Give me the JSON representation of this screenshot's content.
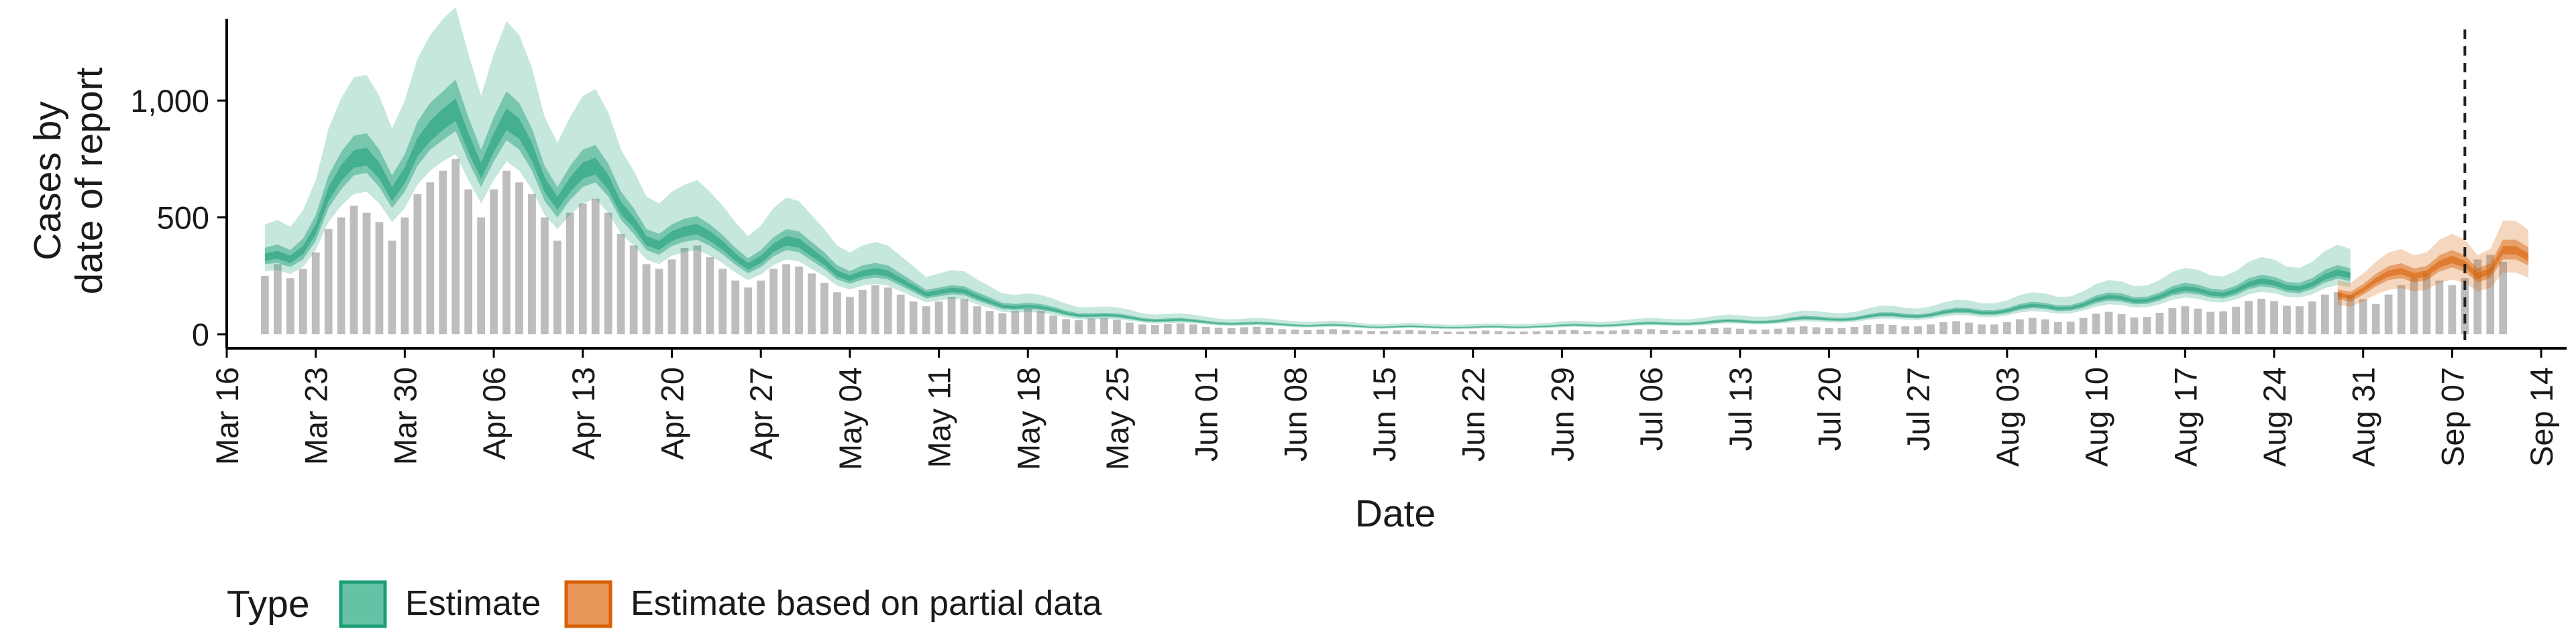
{
  "chart_data": {
    "type": "bar",
    "xlabel": "Date",
    "ylabel_lines": [
      "Cases by",
      "date of report"
    ],
    "y_ticks": [
      0,
      500,
      1000
    ],
    "y_tick_labels": [
      "0",
      "500",
      "1,000"
    ],
    "ylim": [
      -60,
      1350
    ],
    "xlim": [
      "2020-03-16",
      "2020-09-16"
    ],
    "x_ticks": [
      "2020-03-16",
      "2020-03-23",
      "2020-03-30",
      "2020-04-06",
      "2020-04-13",
      "2020-04-20",
      "2020-04-27",
      "2020-05-04",
      "2020-05-11",
      "2020-05-18",
      "2020-05-25",
      "2020-06-01",
      "2020-06-08",
      "2020-06-15",
      "2020-06-22",
      "2020-06-29",
      "2020-07-06",
      "2020-07-13",
      "2020-07-20",
      "2020-07-27",
      "2020-08-03",
      "2020-08-10",
      "2020-08-17",
      "2020-08-24",
      "2020-08-31",
      "2020-09-07",
      "2020-09-14"
    ],
    "x_tick_labels": [
      "Mar 16",
      "Mar 23",
      "Mar 30",
      "Apr 06",
      "Apr 13",
      "Apr 20",
      "Apr 27",
      "May 04",
      "May 11",
      "May 18",
      "May 25",
      "Jun 01",
      "Jun 08",
      "Jun 15",
      "Jun 22",
      "Jun 29",
      "Jul 06",
      "Jul 13",
      "Jul 20",
      "Jul 27",
      "Aug 03",
      "Aug 10",
      "Aug 17",
      "Aug 24",
      "Aug 31",
      "Sep 07",
      "Sep 14"
    ],
    "bar_color": "#bdbdbd",
    "observed_start": "2020-03-19",
    "observed_daily_cases": [
      250,
      300,
      240,
      280,
      350,
      450,
      500,
      550,
      520,
      480,
      400,
      500,
      600,
      650,
      700,
      750,
      620,
      500,
      620,
      700,
      650,
      600,
      500,
      400,
      520,
      560,
      580,
      520,
      430,
      380,
      300,
      280,
      320,
      370,
      380,
      330,
      280,
      230,
      200,
      230,
      280,
      300,
      290,
      260,
      220,
      180,
      160,
      190,
      210,
      200,
      170,
      140,
      120,
      140,
      160,
      150,
      120,
      100,
      90,
      100,
      110,
      100,
      80,
      65,
      60,
      68,
      70,
      62,
      50,
      42,
      40,
      44,
      46,
      42,
      32,
      28,
      26,
      30,
      32,
      28,
      22,
      20,
      18,
      20,
      22,
      18,
      16,
      14,
      14,
      16,
      18,
      16,
      14,
      12,
      12,
      14,
      16,
      14,
      12,
      12,
      13,
      16,
      18,
      18,
      14,
      14,
      16,
      20,
      22,
      22,
      18,
      16,
      17,
      22,
      26,
      28,
      24,
      20,
      20,
      24,
      30,
      34,
      30,
      26,
      26,
      32,
      40,
      44,
      40,
      34,
      34,
      42,
      52,
      56,
      50,
      42,
      42,
      52,
      64,
      70,
      64,
      52,
      54,
      70,
      88,
      96,
      86,
      72,
      74,
      92,
      112,
      120,
      110,
      96,
      98,
      118,
      142,
      152,
      142,
      122,
      120,
      140,
      170,
      180,
      168,
      150,
      130,
      170,
      210,
      240,
      260,
      230,
      210,
      240,
      320,
      340,
      310
    ],
    "separator_date": "2020-09-08",
    "series": [
      {
        "name": "Estimate",
        "color": "#1b9e77",
        "start": "2020-03-19",
        "median": [
          330,
          340,
          320,
          360,
          450,
          600,
          690,
          750,
          760,
          700,
          600,
          680,
          800,
          870,
          920,
          960,
          820,
          700,
          820,
          920,
          880,
          780,
          640,
          560,
          640,
          700,
          720,
          650,
          540,
          480,
          400,
          380,
          420,
          440,
          450,
          420,
          380,
          330,
          290,
          320,
          370,
          400,
          390,
          350,
          310,
          260,
          240,
          260,
          270,
          260,
          230,
          200,
          170,
          180,
          190,
          185,
          160,
          140,
          120,
          115,
          120,
          115,
          105,
          90,
          80,
          80,
          82,
          80,
          72,
          62,
          58,
          60,
          62,
          58,
          52,
          46,
          44,
          46,
          48,
          46,
          42,
          38,
          36,
          38,
          40,
          38,
          34,
          30,
          30,
          32,
          34,
          32,
          30,
          28,
          28,
          30,
          32,
          32,
          30,
          30,
          32,
          34,
          38,
          40,
          38,
          36,
          38,
          42,
          46,
          48,
          46,
          44,
          44,
          48,
          54,
          58,
          56,
          52,
          52,
          56,
          64,
          70,
          68,
          64,
          62,
          66,
          76,
          84,
          84,
          78,
          76,
          82,
          94,
          102,
          100,
          92,
          92,
          100,
          116,
          124,
          120,
          110,
          112,
          126,
          148,
          160,
          156,
          142,
          144,
          160,
          184,
          196,
          190,
          174,
          170,
          186,
          214,
          228,
          220,
          200,
          196,
          214,
          246,
          264,
          252
        ],
        "lo50": [
          300,
          305,
          288,
          320,
          400,
          540,
          620,
          680,
          690,
          630,
          540,
          610,
          720,
          790,
          830,
          870,
          740,
          630,
          740,
          830,
          790,
          700,
          570,
          500,
          575,
          630,
          650,
          590,
          490,
          430,
          360,
          340,
          378,
          396,
          405,
          378,
          342,
          297,
          261,
          288,
          333,
          360,
          351,
          315,
          279,
          234,
          216,
          234,
          243,
          234,
          207,
          180,
          153,
          162,
          171,
          167,
          144,
          126,
          108,
          104,
          108,
          104,
          95,
          81,
          72,
          72,
          74,
          72,
          65,
          56,
          52,
          54,
          56,
          52,
          47,
          41,
          40,
          41,
          43,
          41,
          38,
          34,
          32,
          34,
          36,
          34,
          31,
          27,
          27,
          29,
          31,
          29,
          27,
          25,
          25,
          27,
          29,
          29,
          27,
          27,
          29,
          31,
          34,
          36,
          34,
          32,
          34,
          38,
          41,
          43,
          41,
          40,
          40,
          43,
          49,
          52,
          50,
          47,
          47,
          50,
          58,
          63,
          61,
          58,
          56,
          59,
          68,
          76,
          76,
          70,
          68,
          74,
          85,
          92,
          90,
          83,
          83,
          90,
          104,
          112,
          108,
          99,
          101,
          113,
          133,
          144,
          140,
          128,
          130,
          144,
          166,
          176,
          171,
          157,
          153,
          167,
          193,
          205,
          198,
          180,
          176,
          193,
          221,
          238,
          227
        ],
        "hi50": [
          370,
          385,
          360,
          410,
          510,
          680,
          780,
          850,
          860,
          790,
          680,
          770,
          910,
          990,
          1040,
          1090,
          930,
          790,
          930,
          1040,
          990,
          880,
          720,
          630,
          720,
          790,
          810,
          730,
          610,
          540,
          450,
          430,
          470,
          495,
          505,
          470,
          425,
          370,
          325,
          360,
          415,
          450,
          440,
          395,
          350,
          295,
          270,
          295,
          305,
          295,
          260,
          225,
          190,
          200,
          210,
          205,
          180,
          158,
          135,
          130,
          135,
          130,
          118,
          101,
          90,
          90,
          92,
          90,
          81,
          70,
          65,
          68,
          70,
          65,
          58,
          52,
          50,
          52,
          54,
          52,
          47,
          43,
          40,
          43,
          45,
          43,
          38,
          34,
          34,
          36,
          38,
          36,
          34,
          32,
          32,
          34,
          36,
          36,
          34,
          34,
          36,
          38,
          43,
          45,
          43,
          41,
          43,
          47,
          52,
          54,
          52,
          50,
          50,
          54,
          61,
          65,
          63,
          58,
          58,
          63,
          72,
          79,
          77,
          72,
          70,
          74,
          85,
          94,
          94,
          88,
          85,
          92,
          105,
          114,
          112,
          103,
          103,
          112,
          130,
          139,
          134,
          123,
          125,
          141,
          166,
          179,
          175,
          159,
          161,
          179,
          206,
          220,
          213,
          195,
          190,
          208,
          240,
          255,
          246,
          224,
          220,
          240,
          276,
          296,
          282
        ],
        "lo90": [
          270,
          275,
          258,
          288,
          360,
          480,
          550,
          600,
          610,
          560,
          480,
          540,
          640,
          700,
          740,
          770,
          660,
          560,
          660,
          740,
          700,
          620,
          510,
          450,
          510,
          560,
          580,
          520,
          430,
          380,
          320,
          300,
          336,
          352,
          360,
          336,
          304,
          264,
          232,
          256,
          296,
          320,
          312,
          280,
          248,
          208,
          192,
          208,
          216,
          208,
          184,
          160,
          136,
          144,
          152,
          148,
          128,
          112,
          96,
          92,
          96,
          92,
          84,
          72,
          64,
          64,
          66,
          64,
          58,
          50,
          46,
          48,
          50,
          46,
          42,
          37,
          35,
          37,
          38,
          37,
          34,
          30,
          29,
          30,
          32,
          30,
          27,
          24,
          24,
          26,
          27,
          26,
          24,
          22,
          22,
          24,
          26,
          26,
          24,
          24,
          26,
          27,
          30,
          32,
          30,
          29,
          30,
          34,
          37,
          38,
          37,
          35,
          35,
          38,
          43,
          46,
          45,
          42,
          42,
          45,
          51,
          56,
          54,
          51,
          50,
          53,
          61,
          67,
          67,
          62,
          61,
          66,
          75,
          82,
          80,
          74,
          74,
          80,
          93,
          99,
          96,
          88,
          90,
          101,
          118,
          128,
          125,
          114,
          115,
          128,
          147,
          157,
          152,
          139,
          136,
          149,
          171,
          182,
          176,
          160,
          157,
          171,
          197,
          211,
          202
        ],
        "hi90": [
          470,
          490,
          460,
          530,
          660,
          880,
          1010,
          1100,
          1110,
          1020,
          880,
          1000,
          1180,
          1280,
          1350,
          1400,
          1200,
          1020,
          1200,
          1340,
          1280,
          1140,
          930,
          820,
          930,
          1020,
          1050,
          950,
          790,
          700,
          590,
          560,
          610,
          640,
          660,
          610,
          550,
          480,
          420,
          465,
          540,
          585,
          570,
          510,
          450,
          380,
          350,
          380,
          395,
          380,
          335,
          290,
          245,
          260,
          275,
          270,
          235,
          205,
          175,
          168,
          175,
          168,
          152,
          131,
          116,
          116,
          119,
          116,
          105,
          90,
          84,
          87,
          90,
          84,
          75,
          67,
          64,
          67,
          70,
          67,
          61,
          55,
          52,
          55,
          58,
          55,
          49,
          44,
          44,
          46,
          49,
          46,
          44,
          41,
          41,
          44,
          46,
          46,
          44,
          44,
          46,
          49,
          55,
          58,
          55,
          52,
          55,
          61,
          67,
          70,
          67,
          64,
          64,
          70,
          78,
          84,
          81,
          75,
          75,
          81,
          93,
          102,
          99,
          93,
          90,
          96,
          110,
          122,
          122,
          113,
          110,
          119,
          136,
          148,
          145,
          133,
          133,
          145,
          168,
          180,
          174,
          160,
          162,
          183,
          215,
          232,
          226,
          206,
          209,
          232,
          267,
          284,
          276,
          252,
          247,
          270,
          310,
          331,
          319,
          290,
          284,
          310,
          357,
          383,
          365
        ]
      },
      {
        "name": "Estimate based on partial data",
        "color": "#d95f02",
        "start": "2020-08-29",
        "median": [
          170,
          160,
          190,
          230,
          260,
          270,
          250,
          260,
          300,
          320,
          300,
          250,
          270,
          360,
          360,
          330
        ],
        "lo50": [
          150,
          140,
          168,
          205,
          232,
          240,
          222,
          232,
          268,
          286,
          268,
          222,
          240,
          320,
          320,
          294
        ],
        "hi50": [
          192,
          182,
          214,
          258,
          292,
          304,
          282,
          292,
          338,
          360,
          338,
          282,
          304,
          405,
          405,
          372
        ],
        "lo90": [
          125,
          118,
          140,
          170,
          190,
          198,
          184,
          190,
          220,
          234,
          220,
          184,
          198,
          264,
          264,
          242
        ],
        "hi90": [
          230,
          220,
          260,
          310,
          350,
          365,
          338,
          350,
          405,
          430,
          405,
          338,
          365,
          486,
          486,
          446
        ]
      }
    ],
    "legend": {
      "title": "Type",
      "position": "bottom",
      "items": [
        {
          "label": "Estimate",
          "fill": "#66c2a5",
          "stroke": "#1b9e77"
        },
        {
          "label": "Estimate based on partial data",
          "fill": "#e8965a",
          "stroke": "#d95f02"
        }
      ]
    }
  }
}
